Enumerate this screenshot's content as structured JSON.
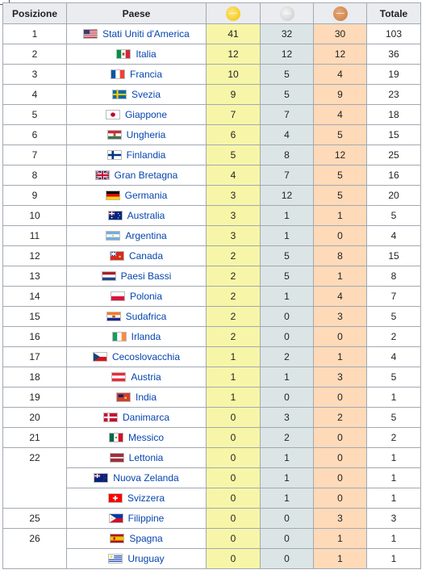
{
  "header": {
    "position": "Posizione",
    "country": "Paese",
    "gold_icon": "gold-medal-icon",
    "silver_icon": "silver-medal-icon",
    "bronze_icon": "bronze-medal-icon",
    "total": "Totale"
  },
  "colors": {
    "gold_cell": "#f7f6a8",
    "silver_cell": "#dce5e5",
    "bronze_cell": "#ffdab9",
    "header_bg": "#eaecf0",
    "link": "#0645ad",
    "gold_medal": "#f2c300",
    "silver_medal": "#c8c8c8",
    "bronze_medal": "#c87a3c"
  },
  "rows": [
    {
      "rank": "1",
      "country": "Stati Uniti d'America",
      "flag": "usa-flag-icon",
      "gold": "41",
      "silver": "32",
      "bronze": "30",
      "total": "103"
    },
    {
      "rank": "2",
      "country": "Italia",
      "flag": "italy-flag-icon",
      "gold": "12",
      "silver": "12",
      "bronze": "12",
      "total": "36"
    },
    {
      "rank": "3",
      "country": "Francia",
      "flag": "france-flag-icon",
      "gold": "10",
      "silver": "5",
      "bronze": "4",
      "total": "19"
    },
    {
      "rank": "4",
      "country": "Svezia",
      "flag": "sweden-flag-icon",
      "gold": "9",
      "silver": "5",
      "bronze": "9",
      "total": "23"
    },
    {
      "rank": "5",
      "country": "Giappone",
      "flag": "japan-flag-icon",
      "gold": "7",
      "silver": "7",
      "bronze": "4",
      "total": "18"
    },
    {
      "rank": "6",
      "country": "Ungheria",
      "flag": "hungary-flag-icon",
      "gold": "6",
      "silver": "4",
      "bronze": "5",
      "total": "15"
    },
    {
      "rank": "7",
      "country": "Finlandia",
      "flag": "finland-flag-icon",
      "gold": "5",
      "silver": "8",
      "bronze": "12",
      "total": "25"
    },
    {
      "rank": "8",
      "country": "Gran Bretagna",
      "flag": "uk-flag-icon",
      "gold": "4",
      "silver": "7",
      "bronze": "5",
      "total": "16"
    },
    {
      "rank": "9",
      "country": "Germania",
      "flag": "germany-flag-icon",
      "gold": "3",
      "silver": "12",
      "bronze": "5",
      "total": "20"
    },
    {
      "rank": "10",
      "country": "Australia",
      "flag": "australia-flag-icon",
      "gold": "3",
      "silver": "1",
      "bronze": "1",
      "total": "5"
    },
    {
      "rank": "11",
      "country": "Argentina",
      "flag": "argentina-flag-icon",
      "gold": "3",
      "silver": "1",
      "bronze": "0",
      "total": "4"
    },
    {
      "rank": "12",
      "country": "Canada",
      "flag": "canada-flag-icon",
      "gold": "2",
      "silver": "5",
      "bronze": "8",
      "total": "15"
    },
    {
      "rank": "13",
      "country": "Paesi Bassi",
      "flag": "netherlands-flag-icon",
      "gold": "2",
      "silver": "5",
      "bronze": "1",
      "total": "8"
    },
    {
      "rank": "14",
      "country": "Polonia",
      "flag": "poland-flag-icon",
      "gold": "2",
      "silver": "1",
      "bronze": "4",
      "total": "7"
    },
    {
      "rank": "15",
      "country": "Sudafrica",
      "flag": "south-africa-flag-icon",
      "gold": "2",
      "silver": "0",
      "bronze": "3",
      "total": "5"
    },
    {
      "rank": "16",
      "country": "Irlanda",
      "flag": "ireland-flag-icon",
      "gold": "2",
      "silver": "0",
      "bronze": "0",
      "total": "2"
    },
    {
      "rank": "17",
      "country": "Cecoslovacchia",
      "flag": "czechoslovakia-flag-icon",
      "gold": "1",
      "silver": "2",
      "bronze": "1",
      "total": "4"
    },
    {
      "rank": "18",
      "country": "Austria",
      "flag": "austria-flag-icon",
      "gold": "1",
      "silver": "1",
      "bronze": "3",
      "total": "5"
    },
    {
      "rank": "19",
      "country": "India",
      "flag": "india-flag-icon",
      "gold": "1",
      "silver": "0",
      "bronze": "0",
      "total": "1"
    },
    {
      "rank": "20",
      "country": "Danimarca",
      "flag": "denmark-flag-icon",
      "gold": "0",
      "silver": "3",
      "bronze": "2",
      "total": "5"
    },
    {
      "rank": "21",
      "country": "Messico",
      "flag": "mexico-flag-icon",
      "gold": "0",
      "silver": "2",
      "bronze": "0",
      "total": "2"
    },
    {
      "rank": "22",
      "country": "Lettonia",
      "flag": "latvia-flag-icon",
      "gold": "0",
      "silver": "1",
      "bronze": "0",
      "total": "1"
    },
    {
      "rank": "",
      "country": "Nuova Zelanda",
      "flag": "new-zealand-flag-icon",
      "gold": "0",
      "silver": "1",
      "bronze": "0",
      "total": "1"
    },
    {
      "rank": "",
      "country": "Svizzera",
      "flag": "switzerland-flag-icon",
      "gold": "0",
      "silver": "1",
      "bronze": "0",
      "total": "1"
    },
    {
      "rank": "25",
      "country": "Filippine",
      "flag": "philippines-flag-icon",
      "gold": "0",
      "silver": "0",
      "bronze": "3",
      "total": "3"
    },
    {
      "rank": "26",
      "country": "Spagna",
      "flag": "spain-flag-icon",
      "gold": "0",
      "silver": "0",
      "bronze": "1",
      "total": "1"
    },
    {
      "rank": "",
      "country": "Uruguay",
      "flag": "uruguay-flag-icon",
      "gold": "0",
      "silver": "0",
      "bronze": "1",
      "total": "1"
    }
  ]
}
